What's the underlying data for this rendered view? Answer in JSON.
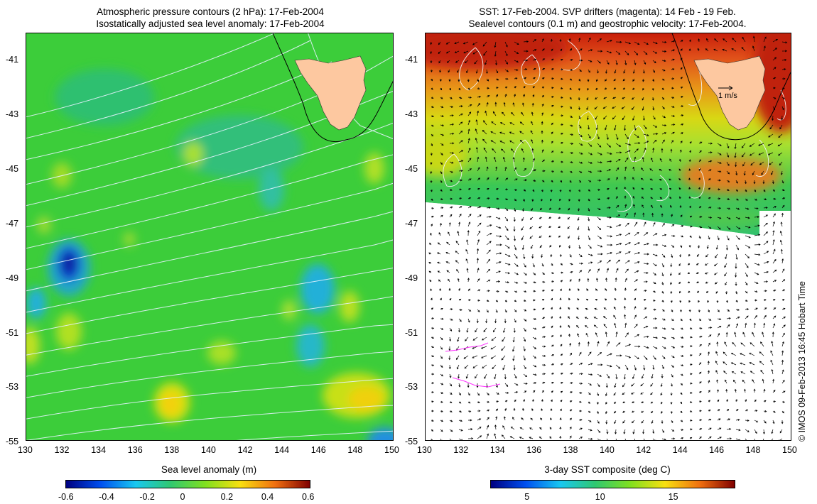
{
  "left_panel": {
    "title_line1": "Atmospheric pressure contours (2 hPa): 17-Feb-2004",
    "title_line2": "Isostatically adjusted sea level anomaly: 17-Feb-2004",
    "x_ticks": [
      "130",
      "132",
      "134",
      "136",
      "138",
      "140",
      "142",
      "144",
      "146",
      "148",
      "150"
    ],
    "y_ticks": [
      "-41",
      "-43",
      "-45",
      "-47",
      "-49",
      "-51",
      "-53",
      "-55"
    ],
    "colorbar_title": "Sea level anomaly (m)",
    "colorbar_ticks": [
      "-0.6",
      "-0.4",
      "-0.2",
      "0",
      "0.2",
      "0.4",
      "0.6"
    ]
  },
  "right_panel": {
    "title_line1": "SST: 17-Feb-2004. SVP drifters (magenta): 14 Feb - 19 Feb.",
    "title_line2": "Sealevel contours (0.1 m) and geostrophic velocity: 17-Feb-2004.",
    "x_ticks": [
      "130",
      "132",
      "134",
      "136",
      "138",
      "140",
      "142",
      "144",
      "146",
      "148",
      "150"
    ],
    "y_ticks": [
      "-41",
      "-43",
      "-45",
      "-47",
      "-49",
      "-51",
      "-53",
      "-55"
    ],
    "scale_label": "1 m/s",
    "colorbar_title": "3-day SST composite (deg C)",
    "colorbar_ticks": [
      "5",
      "10",
      "15"
    ]
  },
  "credit": "© IMOS 09-Feb-2013 16:45 Hobart Time",
  "map_data": {
    "lon_range": [
      130,
      150
    ],
    "lat_range": [
      -55,
      -40
    ],
    "sla_range_m": [
      -0.6,
      0.6
    ],
    "sst_range_degC": [
      1,
      19
    ],
    "land": "Tasmania"
  },
  "colors": {
    "ocean_green": "#33cc33",
    "land": "#fdc8a0",
    "drifter": "#ff33ff",
    "sst_warm": "#c81e0a",
    "sst_mid": "#e6a014"
  }
}
